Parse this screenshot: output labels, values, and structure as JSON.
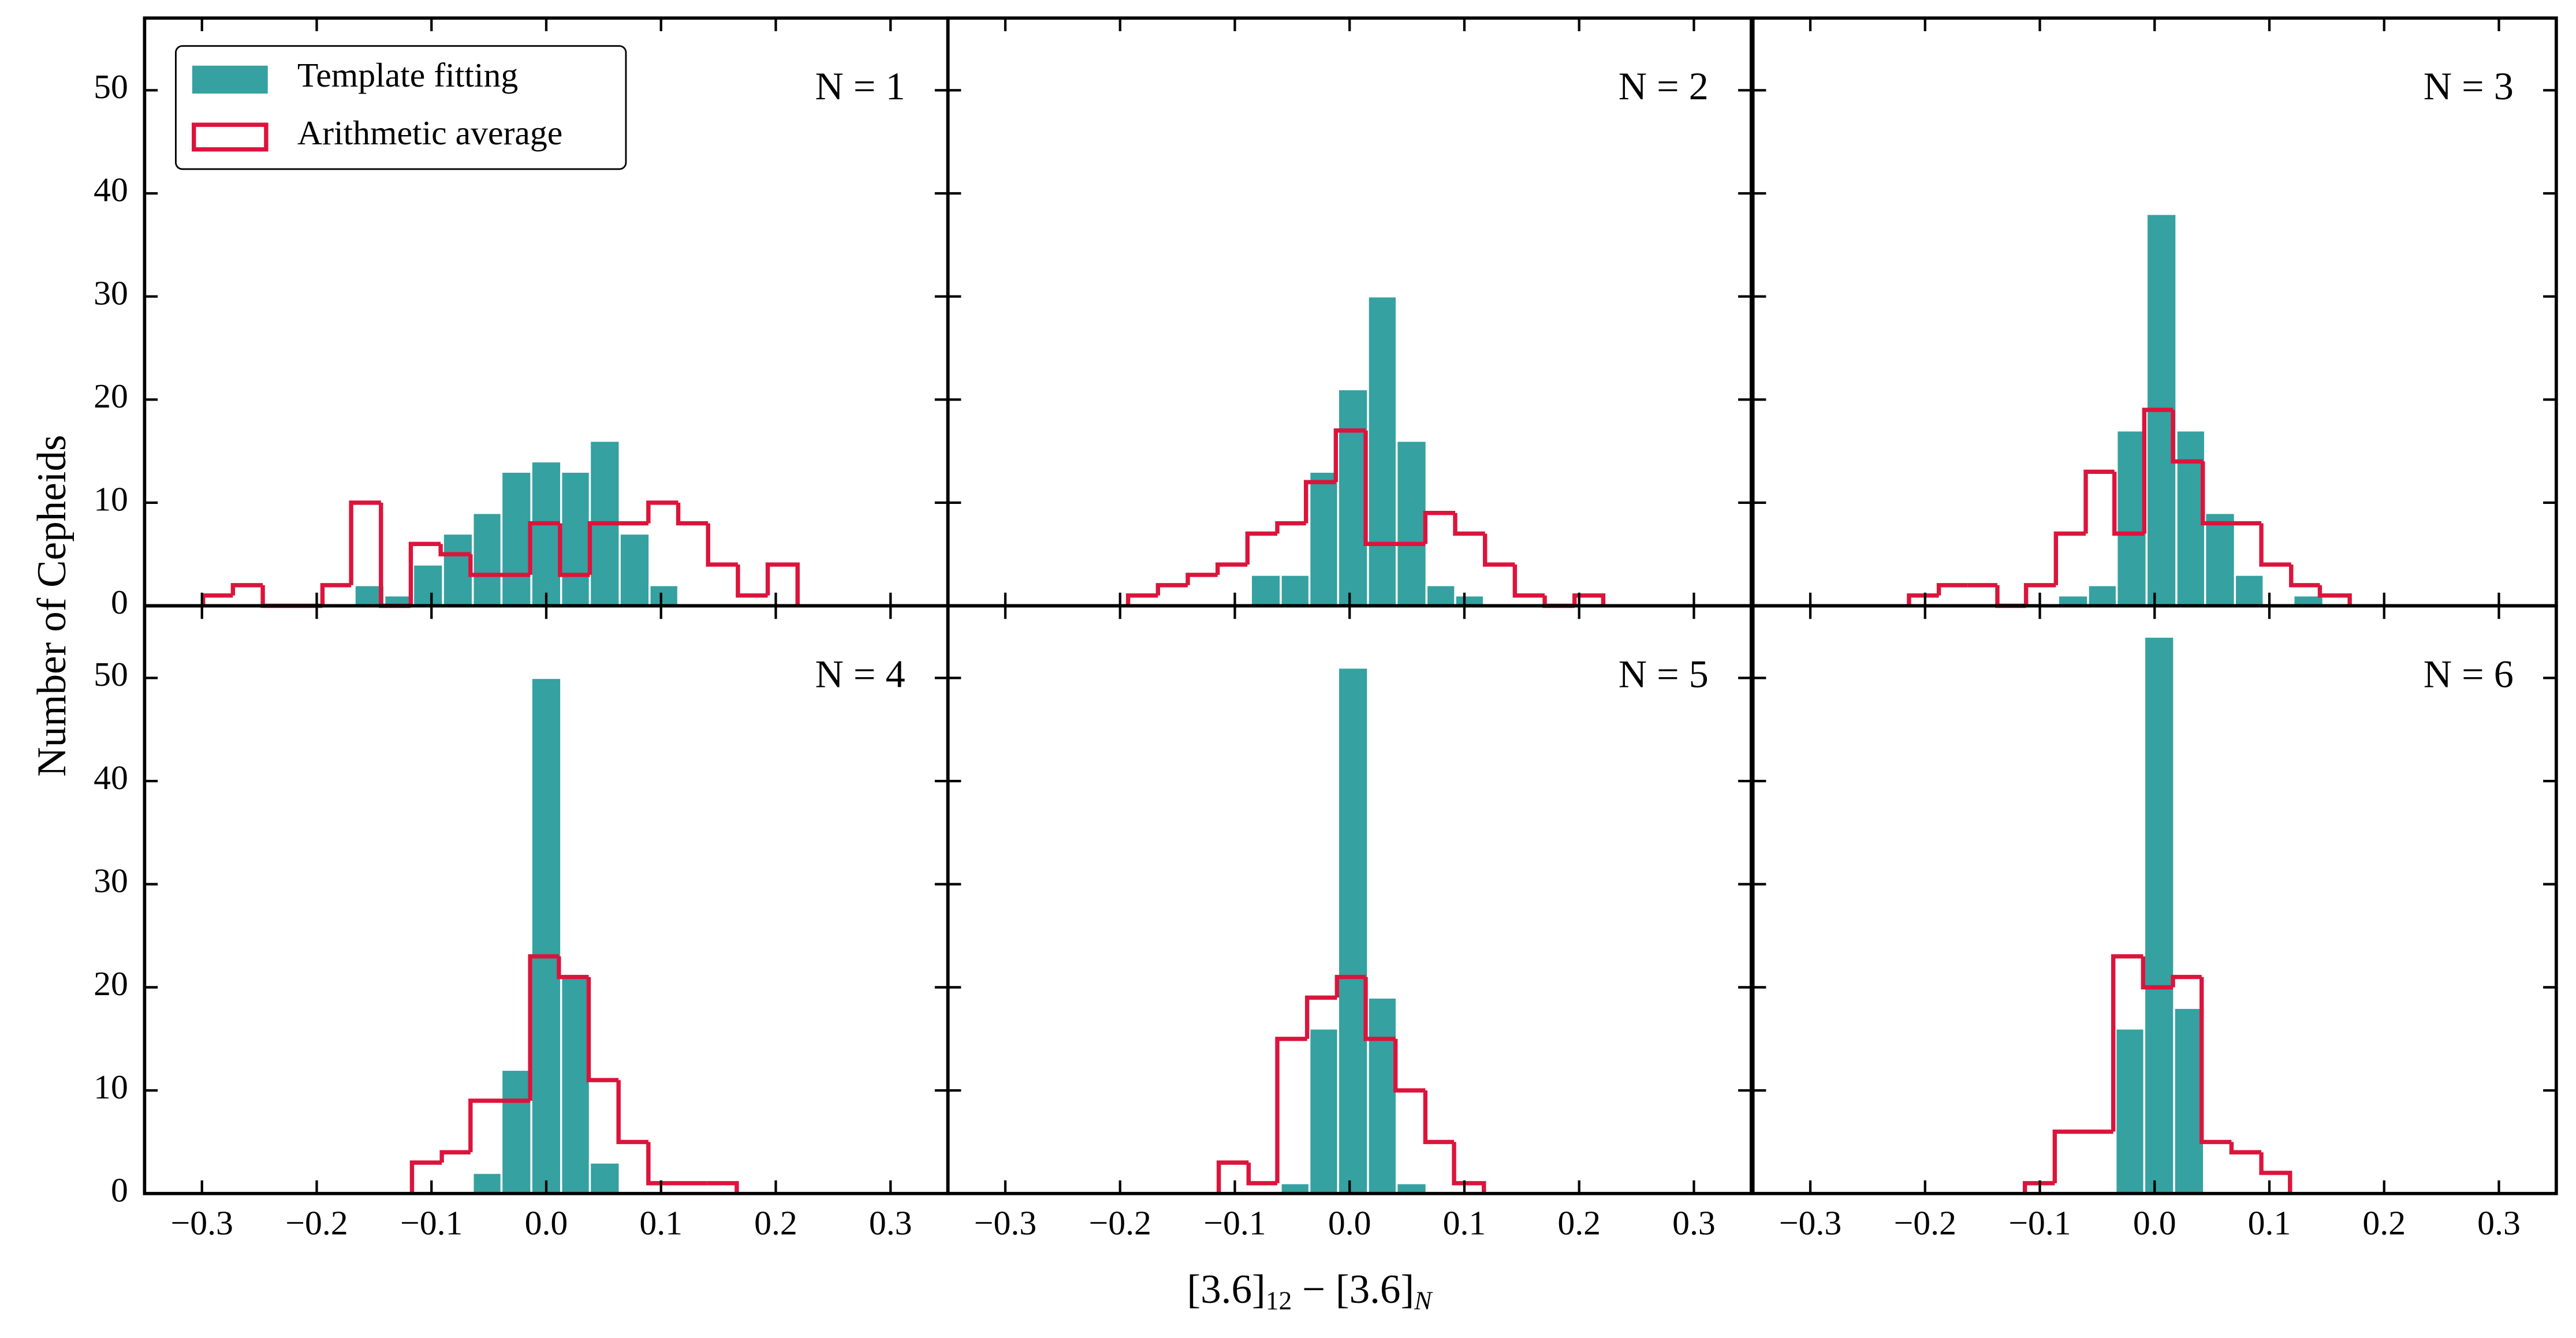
{
  "figure": {
    "xlabel": [
      "[3.6]",
      "12",
      " − [3.6]",
      "N"
    ],
    "ylabel": "Number of Cepheids",
    "xlim": [
      -0.35,
      0.35
    ],
    "xticks": [
      {
        "value": -0.3,
        "label": "−0.3"
      },
      {
        "value": -0.2,
        "label": "−0.2"
      },
      {
        "value": -0.1,
        "label": "−0.1"
      },
      {
        "value": 0,
        "label": "0.0"
      },
      0.1,
      0.2,
      0.3
    ],
    "ylim": [
      0,
      57
    ],
    "yticks": [
      0,
      10,
      20,
      30,
      40,
      50
    ],
    "legend": {
      "loc": "upper left",
      "entries": [
        {
          "name": "Template fitting",
          "color": "#35a1a1",
          "kind": "filled"
        },
        {
          "name": "Arithmetic average",
          "color": "#dc143c",
          "kind": "step"
        }
      ]
    }
  },
  "chart_data": [
    {
      "type": "histogram",
      "title": "N = 1",
      "series": [
        {
          "bins": [
            -0.167,
            -0.141,
            -0.116,
            -0.09,
            -0.064,
            -0.039,
            -0.013,
            0.013,
            0.038,
            0.064,
            0.09,
            0.115
          ],
          "values": [
            2,
            1,
            4,
            7,
            9,
            13,
            14,
            13,
            16,
            7,
            2
          ]
        },
        {
          "bins": [
            -0.299,
            -0.273,
            -0.247,
            -0.221,
            -0.195,
            -0.17,
            -0.144,
            -0.118,
            -0.092,
            -0.066,
            -0.04,
            -0.014,
            0.012,
            0.038,
            0.064,
            0.089,
            0.115,
            0.141,
            0.167,
            0.193,
            0.219
          ],
          "values": [
            1,
            2,
            0,
            0,
            2,
            10,
            0,
            6,
            5,
            3,
            3,
            8,
            3,
            8,
            8,
            10,
            8,
            4,
            1,
            4
          ]
        }
      ]
    },
    {
      "type": "histogram",
      "title": "N = 2",
      "series": [
        {
          "bins": [
            -0.086,
            -0.06,
            -0.035,
            -0.01,
            0.016,
            0.041,
            0.067,
            0.092,
            0.117
          ],
          "values": [
            3,
            3,
            13,
            21,
            30,
            16,
            2,
            1
          ]
        },
        {
          "bins": [
            -0.193,
            -0.167,
            -0.141,
            -0.115,
            -0.089,
            -0.063,
            -0.038,
            -0.012,
            0.014,
            0.04,
            0.066,
            0.092,
            0.118,
            0.144,
            0.17,
            0.196,
            0.221
          ],
          "values": [
            1,
            2,
            3,
            4,
            7,
            8,
            12,
            17,
            6,
            6,
            9,
            7,
            4,
            1,
            0,
            1
          ]
        }
      ]
    },
    {
      "type": "histogram",
      "title": "N = 3",
      "series": [
        {
          "bins": [
            -0.084,
            -0.058,
            -0.033,
            -0.007,
            0.019,
            0.044,
            0.07,
            0.095,
            0.121,
            0.147
          ],
          "values": [
            1,
            2,
            17,
            38,
            17,
            9,
            3,
            0,
            1
          ]
        },
        {
          "bins": [
            -0.214,
            -0.188,
            -0.163,
            -0.137,
            -0.112,
            -0.086,
            -0.06,
            -0.035,
            -0.009,
            0.016,
            0.042,
            0.068,
            0.093,
            0.119,
            0.144,
            0.17
          ],
          "values": [
            1,
            2,
            2,
            0,
            2,
            7,
            13,
            7,
            19,
            14,
            8,
            8,
            4,
            2,
            1
          ]
        }
      ]
    },
    {
      "type": "histogram",
      "title": "N = 4",
      "series": [
        {
          "bins": [
            -0.064,
            -0.039,
            -0.013,
            0.013,
            0.038,
            0.064
          ],
          "values": [
            2,
            12,
            50,
            21,
            3
          ]
        },
        {
          "bins": [
            -0.117,
            -0.091,
            -0.066,
            -0.04,
            -0.014,
            0.011,
            0.037,
            0.063,
            0.089,
            0.114,
            0.14,
            0.166
          ],
          "values": [
            3,
            4,
            9,
            9,
            23,
            21,
            11,
            5,
            1,
            1,
            1
          ]
        }
      ]
    },
    {
      "type": "histogram",
      "title": "N = 5",
      "series": [
        {
          "bins": [
            -0.06,
            -0.035,
            -0.01,
            0.016,
            0.041,
            0.067
          ],
          "values": [
            1,
            16,
            51,
            19,
            1
          ]
        },
        {
          "bins": [
            -0.114,
            -0.088,
            -0.063,
            -0.037,
            -0.011,
            0.014,
            0.04,
            0.066,
            0.091,
            0.117
          ],
          "values": [
            3,
            1,
            15,
            19,
            21,
            15,
            10,
            5,
            1
          ]
        }
      ]
    },
    {
      "type": "histogram",
      "title": "N = 6",
      "series": [
        {
          "bins": [
            -0.034,
            -0.009,
            0.017,
            0.043
          ],
          "values": [
            16,
            54,
            18
          ]
        },
        {
          "bins": [
            -0.113,
            -0.087,
            -0.061,
            -0.036,
            -0.01,
            0.016,
            0.041,
            0.067,
            0.093,
            0.118
          ],
          "values": [
            1,
            6,
            6,
            23,
            20,
            21,
            5,
            4,
            2
          ]
        }
      ]
    }
  ]
}
